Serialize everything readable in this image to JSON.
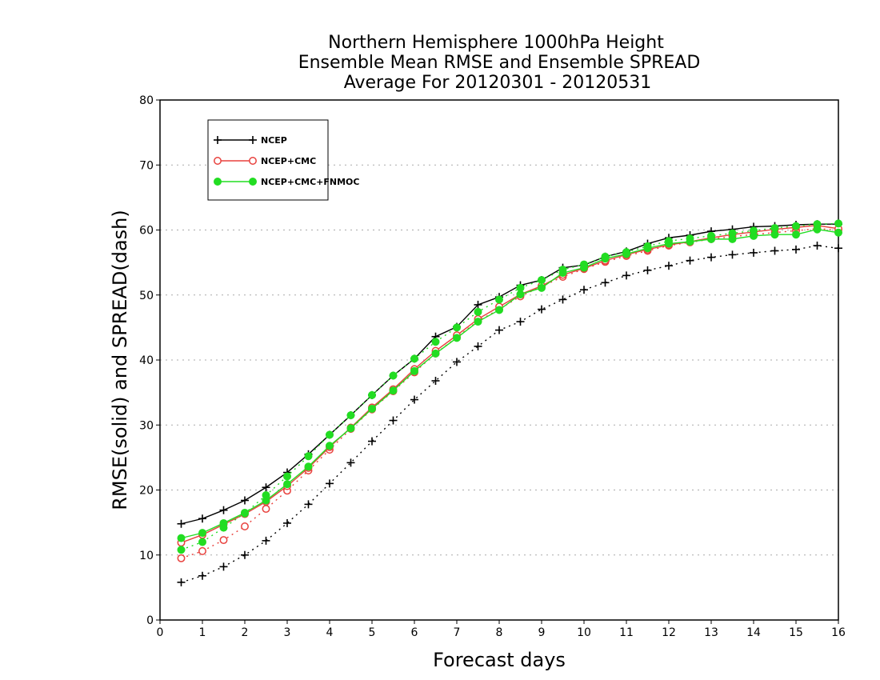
{
  "chart_data": {
    "type": "line",
    "title_lines": [
      "Northern Hemisphere 1000hPa Height",
      "Ensemble Mean RMSE and Ensemble SPREAD",
      "Average For 20120301 - 20120531"
    ],
    "xlabel": "Forecast days",
    "ylabel": "RMSE(solid) and SPREAD(dash)",
    "xlim": [
      0,
      16
    ],
    "ylim": [
      0,
      80
    ],
    "xticks": [
      0,
      1,
      2,
      3,
      4,
      5,
      6,
      7,
      8,
      9,
      10,
      11,
      12,
      13,
      14,
      15,
      16
    ],
    "yticks": [
      0,
      10,
      20,
      30,
      40,
      50,
      60,
      70,
      80
    ],
    "grid": "horizontal dotted",
    "legend_position": "top-left",
    "x": [
      0.5,
      1,
      1.5,
      2,
      2.5,
      3,
      3.5,
      4,
      4.5,
      5,
      5.5,
      6,
      6.5,
      7,
      7.5,
      8,
      8.5,
      9,
      9.5,
      10,
      10.5,
      11,
      11.5,
      12,
      12.5,
      13,
      13.5,
      14,
      14.5,
      15,
      15.5,
      16
    ],
    "series": [
      {
        "name": "NCEP",
        "color": "#000000",
        "marker": "plus",
        "rmse": [
          14.8,
          15.6,
          16.9,
          18.4,
          20.4,
          22.7,
          25.5,
          28.5,
          31.5,
          34.6,
          37.6,
          40.2,
          43.6,
          45.1,
          48.5,
          49.7,
          51.5,
          52.3,
          54.2,
          54.6,
          55.9,
          56.7,
          57.9,
          58.8,
          59.2,
          59.8,
          60.1,
          60.5,
          60.6,
          60.8,
          60.9,
          60.9
        ],
        "spread": [
          5.8,
          6.8,
          8.2,
          10.0,
          12.2,
          14.9,
          17.8,
          21.0,
          24.2,
          27.5,
          30.7,
          33.9,
          36.8,
          39.7,
          42.1,
          44.6,
          45.9,
          47.8,
          49.3,
          50.8,
          51.9,
          53.0,
          53.8,
          54.5,
          55.3,
          55.8,
          56.2,
          56.5,
          56.8,
          57.0,
          57.6,
          57.2
        ]
      },
      {
        "name": "NCEP+CMC",
        "color": "#e8413d",
        "marker": "open-circle",
        "rmse": [
          11.9,
          13.1,
          14.7,
          16.3,
          18.2,
          20.6,
          23.4,
          26.6,
          29.6,
          32.7,
          35.5,
          38.6,
          41.4,
          43.8,
          46.3,
          48.2,
          50.1,
          51.4,
          53.1,
          54.1,
          55.3,
          56.2,
          57.0,
          57.7,
          58.2,
          58.8,
          59.3,
          59.7,
          60.1,
          60.4,
          60.7,
          60.2
        ],
        "spread": [
          9.5,
          10.6,
          12.3,
          14.4,
          17.1,
          19.9,
          23.0,
          26.2,
          29.4,
          32.4,
          35.2,
          38.1,
          41.0,
          43.5,
          46.0,
          47.8,
          49.8,
          51.3,
          52.8,
          54.0,
          55.1,
          56.0,
          56.8,
          57.6,
          58.1,
          58.6,
          59.0,
          59.3,
          59.6,
          59.9,
          60.2,
          60.0
        ]
      },
      {
        "name": "NCEP+CMC+FNMOC",
        "color": "#22dd22",
        "marker": "filled-circle",
        "rmse": [
          12.6,
          13.4,
          14.9,
          16.5,
          18.4,
          20.9,
          23.6,
          26.8,
          29.5,
          32.5,
          35.3,
          38.3,
          41.0,
          43.4,
          45.9,
          47.7,
          50.1,
          51.1,
          53.4,
          54.2,
          55.6,
          56.3,
          57.2,
          57.9,
          58.2,
          58.6,
          58.6,
          59.1,
          59.3,
          59.3,
          60.1,
          59.6
        ],
        "spread": [
          10.8,
          12.0,
          14.2,
          16.4,
          19.2,
          22.1,
          25.2,
          28.5,
          31.5,
          34.6,
          37.6,
          40.2,
          42.8,
          45.0,
          47.4,
          49.3,
          51.1,
          52.3,
          53.9,
          54.7,
          55.9,
          56.6,
          57.5,
          58.3,
          58.7,
          59.1,
          59.5,
          59.9,
          60.3,
          60.6,
          60.9,
          61.0
        ]
      }
    ]
  }
}
